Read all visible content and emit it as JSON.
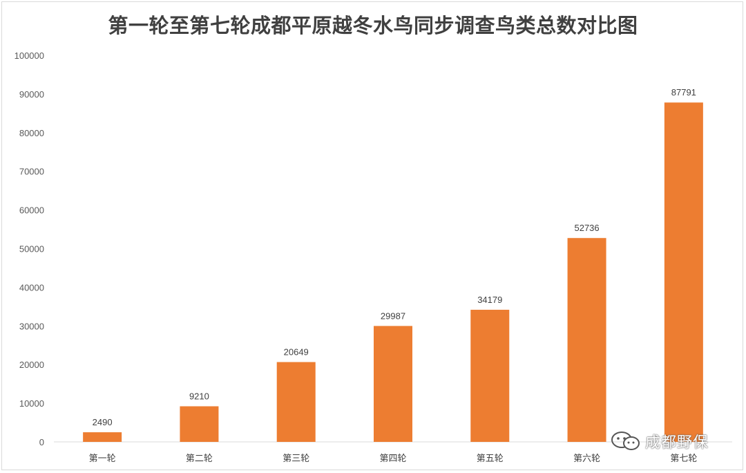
{
  "chart_data": {
    "type": "bar",
    "title": "第一轮至第七轮成都平原越冬水鸟同步调查鸟类总数对比图",
    "categories": [
      "第一轮",
      "第二轮",
      "第三轮",
      "第四轮",
      "第五轮",
      "第六轮",
      "第七轮"
    ],
    "values": [
      2490,
      9210,
      20649,
      29987,
      34179,
      52736,
      87791
    ],
    "yticks": [
      0,
      10000,
      20000,
      30000,
      40000,
      50000,
      60000,
      70000,
      80000,
      90000,
      100000
    ],
    "ylim": [
      0,
      100000
    ],
    "xlabel": "",
    "ylabel": "",
    "grid": false,
    "bar_color": "#ED7D31",
    "data_labels": true
  },
  "watermark": {
    "text": "成都野保",
    "icon": "wechat-icon"
  }
}
